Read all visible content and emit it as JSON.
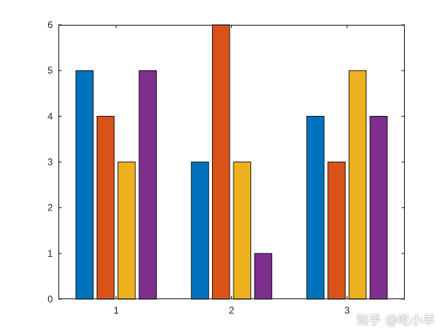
{
  "chart_data": {
    "type": "bar",
    "categories": [
      "1",
      "2",
      "3"
    ],
    "series": [
      {
        "values": [
          5,
          3,
          4
        ],
        "color": "#0072BD"
      },
      {
        "values": [
          4,
          6,
          3
        ],
        "color": "#D95319"
      },
      {
        "values": [
          3,
          3,
          5
        ],
        "color": "#EDB120"
      },
      {
        "values": [
          5,
          1,
          4
        ],
        "color": "#7E2F8E"
      }
    ],
    "title": "",
    "xlabel": "",
    "ylabel": "",
    "ylim": [
      0,
      6
    ],
    "yticks": [
      0,
      1,
      2,
      3,
      4,
      5,
      6
    ],
    "grid": false,
    "legend": "none"
  },
  "watermark": "知乎 @吃小羊"
}
